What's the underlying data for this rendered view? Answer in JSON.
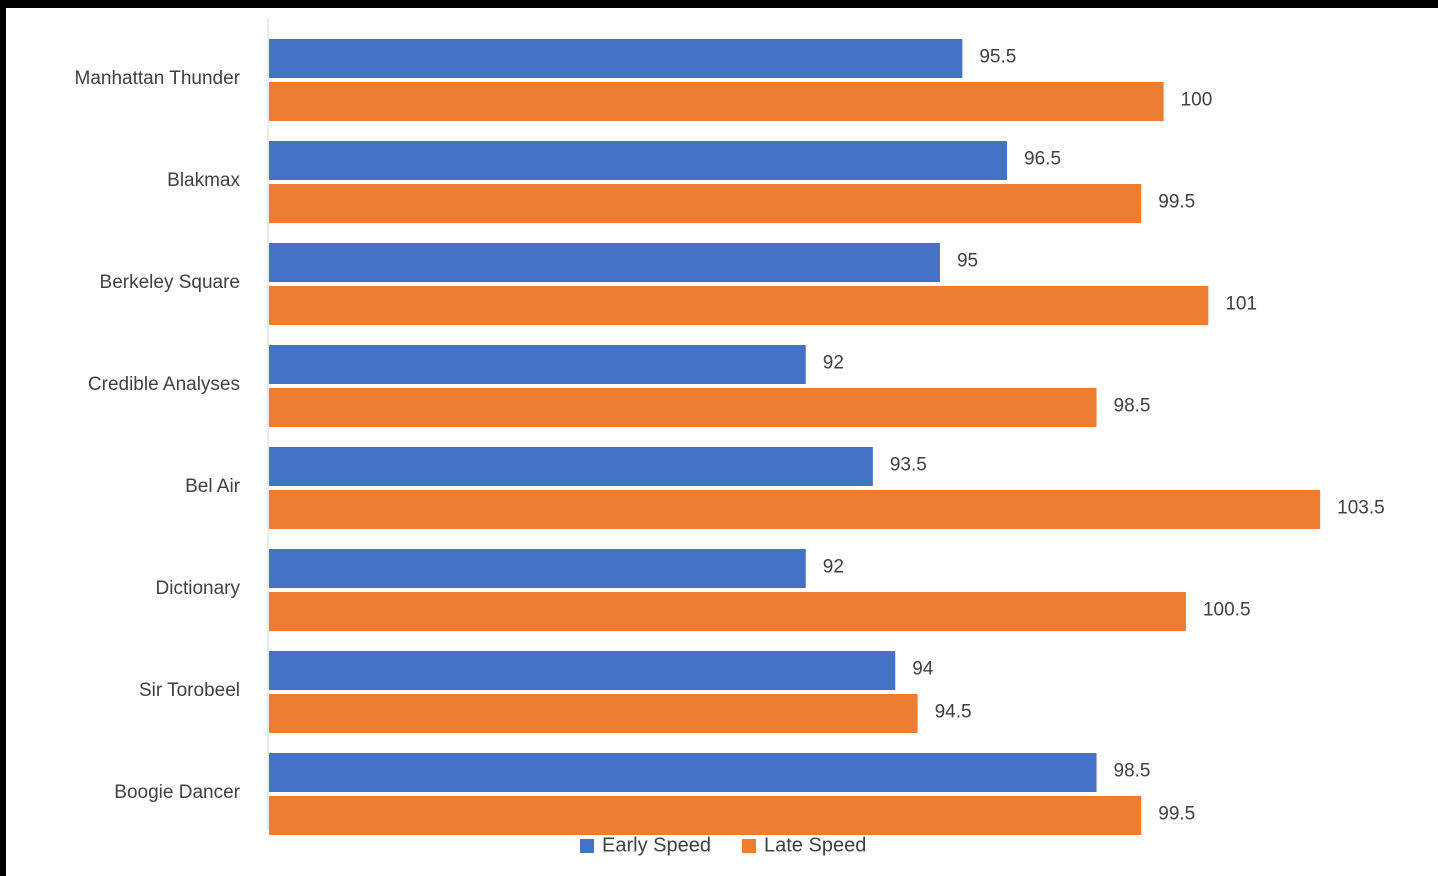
{
  "chart_data": {
    "type": "bar",
    "orientation": "horizontal",
    "title": "",
    "xlabel": "",
    "ylabel": "",
    "categories": [
      "Manhattan Thunder",
      "Blakmax",
      "Berkeley Square",
      "Credible Analyses",
      "Bel Air",
      "Dictionary",
      "Sir Torobeel",
      "Boogie Dancer"
    ],
    "series": [
      {
        "name": "Early Speed",
        "color": "#4472C4",
        "values": [
          95.5,
          96.5,
          95,
          92,
          93.5,
          92,
          94,
          98.5
        ]
      },
      {
        "name": "Late Speed",
        "color": "#ED7D31",
        "values": [
          100,
          99.5,
          101,
          98.5,
          103.5,
          100.5,
          94.5,
          99.5
        ]
      }
    ],
    "value_labels": [
      [
        "95.5",
        "96.5",
        "95",
        "92",
        "93.5",
        "92",
        "94",
        "98.5"
      ],
      [
        "100",
        "99.5",
        "101",
        "98.5",
        "103.5",
        "100.5",
        "94.5",
        "99.5"
      ]
    ],
    "xlim": [
      80,
      106
    ],
    "grid": false,
    "legend_position": "bottom"
  }
}
